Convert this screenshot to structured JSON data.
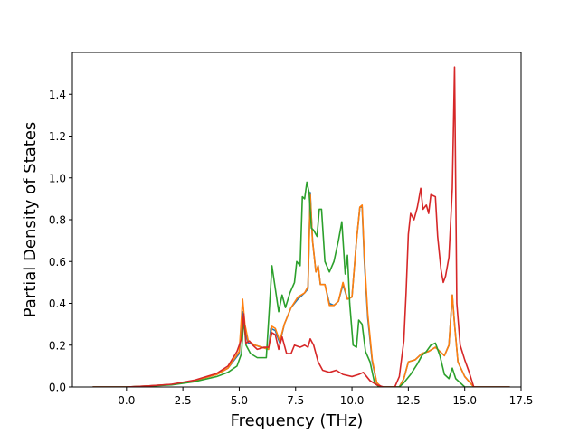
{
  "chart_data": {
    "type": "line",
    "title": "",
    "xlabel": "Frequency (THz)",
    "ylabel": "Partial Density of States",
    "xlim": [
      -2.4,
      17.5
    ],
    "ylim": [
      0,
      1.6
    ],
    "xticks": [
      0.0,
      2.5,
      5.0,
      7.5,
      10.0,
      12.5,
      15.0,
      17.5
    ],
    "xtick_labels": [
      "0.0",
      "2.5",
      "5.0",
      "7.5",
      "10.0",
      "12.5",
      "15.0",
      "17.5"
    ],
    "yticks": [
      0.0,
      0.2,
      0.4,
      0.6,
      0.8,
      1.0,
      1.2,
      1.4
    ],
    "ytick_labels": [
      "0.0",
      "0.2",
      "0.4",
      "0.6",
      "0.8",
      "1.0",
      "1.2",
      "1.4"
    ],
    "grid": false,
    "legend": "none",
    "series": [
      {
        "color": "#1f77b4",
        "points": [
          [
            -1.5,
            0
          ],
          [
            0,
            0
          ],
          [
            1,
            0.005
          ],
          [
            2,
            0.012
          ],
          [
            3,
            0.03
          ],
          [
            4,
            0.06
          ],
          [
            4.5,
            0.09
          ],
          [
            5.0,
            0.16
          ],
          [
            5.15,
            0.36
          ],
          [
            5.2,
            0.3
          ],
          [
            5.4,
            0.21
          ],
          [
            5.7,
            0.2
          ],
          [
            6,
            0.19
          ],
          [
            6.3,
            0.18
          ],
          [
            6.4,
            0.28
          ],
          [
            6.6,
            0.27
          ],
          [
            6.8,
            0.21
          ],
          [
            7,
            0.3
          ],
          [
            7.3,
            0.38
          ],
          [
            7.6,
            0.42
          ],
          [
            7.9,
            0.45
          ],
          [
            8.05,
            0.47
          ],
          [
            8.15,
            0.93
          ],
          [
            8.25,
            0.7
          ],
          [
            8.4,
            0.55
          ],
          [
            8.5,
            0.58
          ],
          [
            8.6,
            0.49
          ],
          [
            8.8,
            0.49
          ],
          [
            9.0,
            0.4
          ],
          [
            9.2,
            0.39
          ],
          [
            9.4,
            0.41
          ],
          [
            9.6,
            0.49
          ],
          [
            9.8,
            0.42
          ],
          [
            10.0,
            0.43
          ],
          [
            10.2,
            0.7
          ],
          [
            10.35,
            0.86
          ],
          [
            10.45,
            0.86
          ],
          [
            10.55,
            0.6
          ],
          [
            10.7,
            0.33
          ],
          [
            10.9,
            0.12
          ],
          [
            11.1,
            0.02
          ],
          [
            11.3,
            0
          ],
          [
            12.1,
            0
          ],
          [
            12.3,
            0.04
          ],
          [
            12.5,
            0.12
          ],
          [
            12.8,
            0.13
          ],
          [
            13.1,
            0.16
          ],
          [
            13.4,
            0.17
          ],
          [
            13.7,
            0.19
          ],
          [
            13.9,
            0.17
          ],
          [
            14.1,
            0.15
          ],
          [
            14.3,
            0.2
          ],
          [
            14.45,
            0.44
          ],
          [
            14.55,
            0.3
          ],
          [
            14.7,
            0.12
          ],
          [
            15,
            0.05
          ],
          [
            15.4,
            0
          ],
          [
            17,
            0
          ]
        ]
      },
      {
        "color": "#ff7f0e",
        "points": [
          [
            -1.5,
            0
          ],
          [
            0,
            0
          ],
          [
            1,
            0.005
          ],
          [
            2,
            0.012
          ],
          [
            3,
            0.03
          ],
          [
            4,
            0.06
          ],
          [
            4.5,
            0.09
          ],
          [
            5.0,
            0.17
          ],
          [
            5.15,
            0.42
          ],
          [
            5.25,
            0.3
          ],
          [
            5.4,
            0.22
          ],
          [
            5.7,
            0.2
          ],
          [
            6,
            0.19
          ],
          [
            6.3,
            0.18
          ],
          [
            6.45,
            0.29
          ],
          [
            6.6,
            0.28
          ],
          [
            6.8,
            0.22
          ],
          [
            7,
            0.3
          ],
          [
            7.3,
            0.38
          ],
          [
            7.6,
            0.43
          ],
          [
            7.9,
            0.45
          ],
          [
            8.05,
            0.48
          ],
          [
            8.15,
            0.92
          ],
          [
            8.25,
            0.7
          ],
          [
            8.4,
            0.55
          ],
          [
            8.5,
            0.58
          ],
          [
            8.6,
            0.49
          ],
          [
            8.8,
            0.49
          ],
          [
            9.0,
            0.39
          ],
          [
            9.2,
            0.39
          ],
          [
            9.4,
            0.41
          ],
          [
            9.6,
            0.5
          ],
          [
            9.8,
            0.42
          ],
          [
            10.0,
            0.43
          ],
          [
            10.2,
            0.7
          ],
          [
            10.35,
            0.86
          ],
          [
            10.45,
            0.87
          ],
          [
            10.55,
            0.62
          ],
          [
            10.7,
            0.35
          ],
          [
            10.9,
            0.13
          ],
          [
            11.1,
            0.02
          ],
          [
            11.3,
            0
          ],
          [
            12.1,
            0
          ],
          [
            12.3,
            0.04
          ],
          [
            12.5,
            0.12
          ],
          [
            12.8,
            0.13
          ],
          [
            13.1,
            0.16
          ],
          [
            13.4,
            0.17
          ],
          [
            13.7,
            0.19
          ],
          [
            13.9,
            0.17
          ],
          [
            14.1,
            0.15
          ],
          [
            14.3,
            0.2
          ],
          [
            14.45,
            0.44
          ],
          [
            14.55,
            0.3
          ],
          [
            14.7,
            0.12
          ],
          [
            15,
            0.05
          ],
          [
            15.4,
            0
          ],
          [
            17,
            0
          ]
        ]
      },
      {
        "color": "#2ca02c",
        "points": [
          [
            -1.5,
            0
          ],
          [
            0,
            0
          ],
          [
            1,
            0.004
          ],
          [
            2,
            0.01
          ],
          [
            3,
            0.025
          ],
          [
            4,
            0.05
          ],
          [
            4.5,
            0.07
          ],
          [
            4.9,
            0.1
          ],
          [
            5.1,
            0.16
          ],
          [
            5.2,
            0.33
          ],
          [
            5.3,
            0.2
          ],
          [
            5.5,
            0.16
          ],
          [
            5.8,
            0.14
          ],
          [
            6.2,
            0.14
          ],
          [
            6.35,
            0.4
          ],
          [
            6.45,
            0.58
          ],
          [
            6.6,
            0.47
          ],
          [
            6.75,
            0.36
          ],
          [
            6.9,
            0.44
          ],
          [
            7.05,
            0.38
          ],
          [
            7.25,
            0.45
          ],
          [
            7.45,
            0.5
          ],
          [
            7.55,
            0.6
          ],
          [
            7.7,
            0.58
          ],
          [
            7.8,
            0.91
          ],
          [
            7.9,
            0.9
          ],
          [
            8.0,
            0.98
          ],
          [
            8.1,
            0.93
          ],
          [
            8.2,
            0.76
          ],
          [
            8.3,
            0.75
          ],
          [
            8.45,
            0.72
          ],
          [
            8.55,
            0.85
          ],
          [
            8.65,
            0.85
          ],
          [
            8.8,
            0.6
          ],
          [
            9.0,
            0.55
          ],
          [
            9.2,
            0.6
          ],
          [
            9.4,
            0.7
          ],
          [
            9.55,
            0.79
          ],
          [
            9.7,
            0.54
          ],
          [
            9.8,
            0.63
          ],
          [
            9.9,
            0.4
          ],
          [
            10.05,
            0.2
          ],
          [
            10.2,
            0.19
          ],
          [
            10.3,
            0.32
          ],
          [
            10.45,
            0.3
          ],
          [
            10.6,
            0.17
          ],
          [
            10.8,
            0.12
          ],
          [
            11.0,
            0.02
          ],
          [
            11.2,
            0
          ],
          [
            12.1,
            0
          ],
          [
            12.3,
            0.02
          ],
          [
            12.6,
            0.06
          ],
          [
            12.9,
            0.11
          ],
          [
            13.1,
            0.15
          ],
          [
            13.3,
            0.17
          ],
          [
            13.5,
            0.2
          ],
          [
            13.7,
            0.21
          ],
          [
            13.9,
            0.15
          ],
          [
            14.1,
            0.06
          ],
          [
            14.3,
            0.04
          ],
          [
            14.45,
            0.09
          ],
          [
            14.6,
            0.04
          ],
          [
            14.8,
            0.02
          ],
          [
            15.0,
            0
          ],
          [
            17,
            0
          ]
        ]
      },
      {
        "color": "#d62728",
        "points": [
          [
            -1.5,
            0
          ],
          [
            0,
            0
          ],
          [
            1,
            0.005
          ],
          [
            2,
            0.013
          ],
          [
            3,
            0.032
          ],
          [
            4,
            0.065
          ],
          [
            4.5,
            0.1
          ],
          [
            4.9,
            0.17
          ],
          [
            5.1,
            0.23
          ],
          [
            5.2,
            0.35
          ],
          [
            5.3,
            0.21
          ],
          [
            5.45,
            0.22
          ],
          [
            5.6,
            0.2
          ],
          [
            5.8,
            0.18
          ],
          [
            6.1,
            0.19
          ],
          [
            6.3,
            0.19
          ],
          [
            6.45,
            0.26
          ],
          [
            6.6,
            0.25
          ],
          [
            6.75,
            0.18
          ],
          [
            6.9,
            0.24
          ],
          [
            7.1,
            0.16
          ],
          [
            7.3,
            0.16
          ],
          [
            7.45,
            0.2
          ],
          [
            7.7,
            0.19
          ],
          [
            7.9,
            0.2
          ],
          [
            8.05,
            0.19
          ],
          [
            8.15,
            0.23
          ],
          [
            8.3,
            0.2
          ],
          [
            8.5,
            0.12
          ],
          [
            8.7,
            0.08
          ],
          [
            9.0,
            0.07
          ],
          [
            9.3,
            0.08
          ],
          [
            9.6,
            0.06
          ],
          [
            10.0,
            0.05
          ],
          [
            10.3,
            0.06
          ],
          [
            10.5,
            0.07
          ],
          [
            10.8,
            0.03
          ],
          [
            11.1,
            0.01
          ],
          [
            11.4,
            0
          ],
          [
            11.9,
            0
          ],
          [
            12.1,
            0.05
          ],
          [
            12.3,
            0.22
          ],
          [
            12.4,
            0.45
          ],
          [
            12.5,
            0.73
          ],
          [
            12.6,
            0.83
          ],
          [
            12.75,
            0.8
          ],
          [
            12.9,
            0.86
          ],
          [
            13.05,
            0.95
          ],
          [
            13.15,
            0.85
          ],
          [
            13.3,
            0.87
          ],
          [
            13.4,
            0.83
          ],
          [
            13.5,
            0.92
          ],
          [
            13.7,
            0.91
          ],
          [
            13.8,
            0.72
          ],
          [
            13.95,
            0.56
          ],
          [
            14.05,
            0.5
          ],
          [
            14.15,
            0.53
          ],
          [
            14.3,
            0.62
          ],
          [
            14.45,
            0.95
          ],
          [
            14.55,
            1.53
          ],
          [
            14.65,
            0.4
          ],
          [
            14.8,
            0.2
          ],
          [
            15.0,
            0.13
          ],
          [
            15.2,
            0.07
          ],
          [
            15.4,
            0
          ],
          [
            17,
            0
          ]
        ]
      }
    ]
  }
}
